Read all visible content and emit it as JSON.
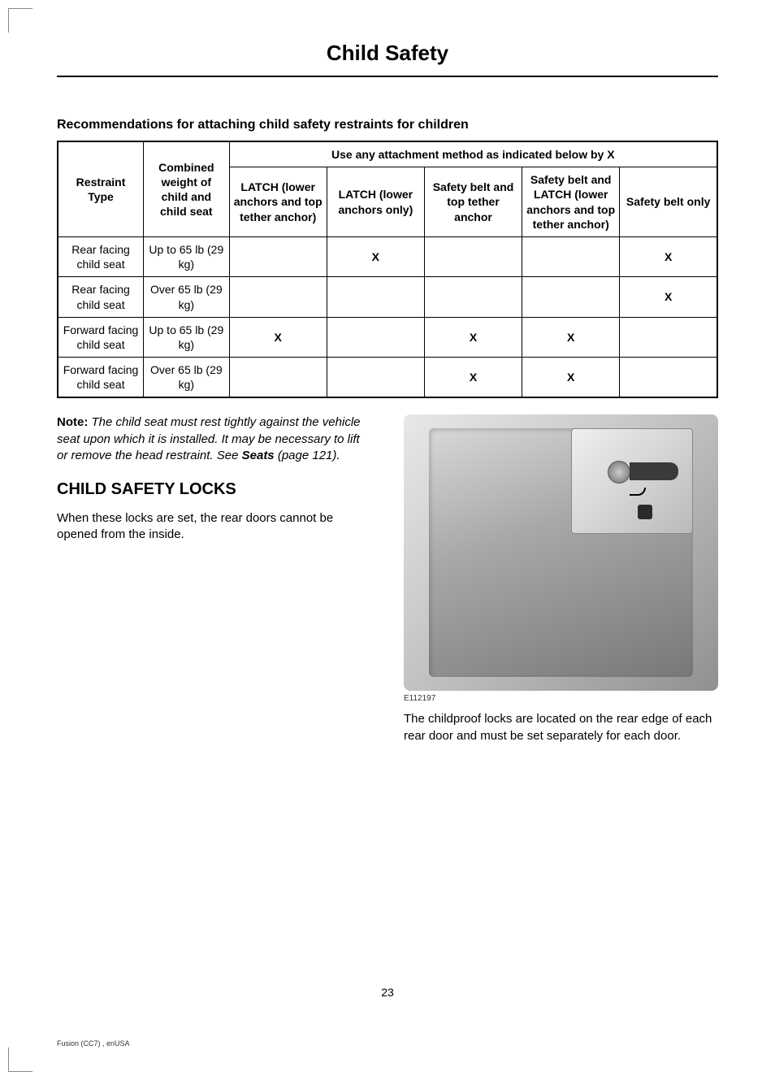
{
  "page_title": "Child Safety",
  "table_caption": "Recommendations for attaching child safety restraints for children",
  "table": {
    "header_top": {
      "restraint": "Restraint Type",
      "weight": "Combined weight of child and child seat",
      "method_span": "Use any attachment method as indicated below by X"
    },
    "method_headers": [
      "LATCH (lower anchors and top tether anchor)",
      "LATCH (lower anchors only)",
      "Safety belt and top tether anchor",
      "Safety belt and LATCH (lower anchors and top tether anchor)",
      "Safety belt only"
    ],
    "rows": [
      {
        "restraint": "Rear facing child seat",
        "weight": "Up to 65 lb (29 kg)",
        "cells": [
          "",
          "X",
          "",
          "",
          "X"
        ]
      },
      {
        "restraint": "Rear facing child seat",
        "weight": "Over 65 lb (29 kg)",
        "cells": [
          "",
          "",
          "",
          "",
          "X"
        ]
      },
      {
        "restraint": "Forward facing child seat",
        "weight": "Up to 65 lb (29 kg)",
        "cells": [
          "X",
          "",
          "X",
          "X",
          ""
        ]
      },
      {
        "restraint": "Forward facing child seat",
        "weight": "Over 65 lb (29 kg)",
        "cells": [
          "",
          "",
          "X",
          "X",
          ""
        ]
      }
    ]
  },
  "note": {
    "label": "Note:",
    "text": " The child seat must rest tightly against the vehicle seat upon which it is installed. It may be necessary to lift or remove the head restraint.  See ",
    "seats": "Seats",
    "page_ref": " (page 121)."
  },
  "locks_heading": "CHILD SAFETY LOCKS",
  "locks_intro": "When these locks are set, the rear doors cannot be opened from the inside.",
  "image_id": "E112197",
  "locks_desc": "The childproof locks are located on the rear edge of each rear door and must be set separately for each door.",
  "page_number": "23",
  "footer": "Fusion (CC7) , enUSA"
}
